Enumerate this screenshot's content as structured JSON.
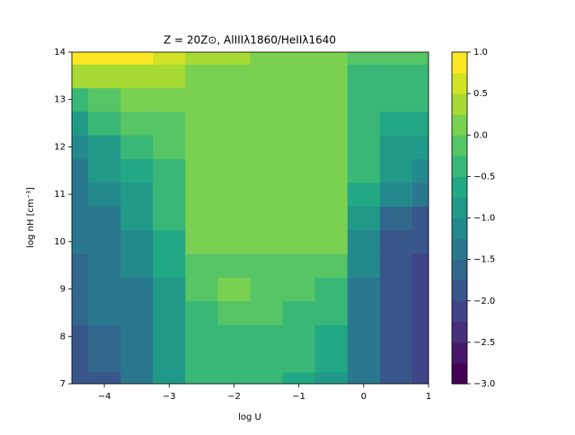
{
  "chart_data": {
    "type": "contour",
    "title": "Z = 20Z⊙, AlIIIλ1860/HeIIλ1640",
    "x_label": "log U",
    "y_label": "log nH [cm⁻³]",
    "colormap": "viridis",
    "x": [
      -4.5,
      -4,
      -3.5,
      -3,
      -2.5,
      -2,
      -1.5,
      -1,
      -0.5,
      0,
      0.5,
      1
    ],
    "y": [
      7,
      7.5,
      8,
      8.5,
      9,
      9.5,
      10,
      10.5,
      11,
      11.5,
      12,
      12.5,
      13,
      13.5,
      14
    ],
    "z": [
      [
        -2.0,
        -1.8,
        -1.5,
        -1.0,
        -0.5,
        -0.4,
        -0.45,
        -0.6,
        -0.8,
        -1.5,
        -2.0,
        -2.1
      ],
      [
        -1.9,
        -1.7,
        -1.4,
        -0.9,
        -0.4,
        -0.35,
        -0.4,
        -0.5,
        -0.7,
        -1.4,
        -2.0,
        -2.1
      ],
      [
        -1.8,
        -1.6,
        -1.3,
        -0.8,
        -0.3,
        -0.3,
        -0.3,
        -0.4,
        -0.6,
        -1.4,
        -2.0,
        -2.1
      ],
      [
        -1.7,
        -1.5,
        -1.3,
        -0.9,
        -0.3,
        -0.15,
        -0.2,
        -0.3,
        -0.5,
        -1.4,
        -2.0,
        -2.1
      ],
      [
        -1.6,
        -1.5,
        -1.3,
        -0.8,
        -0.2,
        0.05,
        -0.1,
        -0.15,
        -0.3,
        -1.3,
        -2.0,
        -2.1
      ],
      [
        -1.6,
        -1.4,
        -1.2,
        -0.7,
        -0.1,
        -0.1,
        -0.1,
        -0.1,
        -0.2,
        -1.2,
        -1.9,
        -2.1
      ],
      [
        -1.5,
        -1.4,
        -1.1,
        -0.6,
        0.05,
        0.1,
        0.1,
        0.1,
        0.05,
        -1.1,
        -1.8,
        -2.0
      ],
      [
        -1.5,
        -1.3,
        -1.0,
        -0.5,
        0.1,
        0.1,
        0.1,
        0.1,
        0.1,
        -0.9,
        -1.6,
        -1.8
      ],
      [
        -1.4,
        -1.2,
        -0.9,
        -0.4,
        0.1,
        0.1,
        0.1,
        0.1,
        0.1,
        -0.7,
        -1.2,
        -1.4
      ],
      [
        -1.3,
        -1.0,
        -0.7,
        -0.3,
        0.1,
        0.1,
        0.1,
        0.1,
        0.1,
        -0.5,
        -1.0,
        -1.1
      ],
      [
        -1.1,
        -0.8,
        -0.5,
        -0.2,
        0.1,
        0.1,
        0.1,
        0.1,
        0.1,
        -0.3,
        -0.8,
        -0.9
      ],
      [
        -0.8,
        -0.4,
        -0.2,
        -0.1,
        0.05,
        0.1,
        0.15,
        0.1,
        0.1,
        -0.5,
        -0.6,
        -0.6
      ],
      [
        -0.3,
        -0.1,
        0.0,
        0.05,
        0.0,
        0.1,
        0.1,
        0.1,
        0.1,
        -0.4,
        -0.4,
        -0.4
      ],
      [
        0.3,
        0.4,
        0.4,
        0.3,
        0.2,
        0.1,
        0.1,
        0.1,
        0.1,
        -0.3,
        -0.3,
        -0.3
      ],
      [
        0.8,
        0.8,
        0.8,
        0.6,
        0.4,
        0.3,
        0.1,
        0.1,
        0.1,
        -0.2,
        -0.2,
        -0.2
      ]
    ],
    "levels": [
      -3,
      -2.75,
      -2.5,
      -2.25,
      -2,
      -1.75,
      -1.5,
      -1.25,
      -1,
      -0.75,
      -0.5,
      -0.25,
      0,
      0.25,
      0.5,
      0.75,
      1
    ],
    "xlim": [
      -4.5,
      1
    ],
    "ylim": [
      7,
      14
    ],
    "xticks": [
      {
        "value": -4,
        "label": "−4"
      },
      {
        "value": -3,
        "label": "−3"
      },
      {
        "value": -2,
        "label": "−2"
      },
      {
        "value": -1,
        "label": "−1"
      },
      0,
      1
    ],
    "yticks": [
      7,
      8,
      9,
      10,
      11,
      12,
      13,
      14
    ],
    "clim": [
      -3,
      1
    ],
    "cticks": [
      {
        "value": -3,
        "label": "−3.0"
      },
      {
        "value": -2.5,
        "label": "−2.5"
      },
      {
        "value": -2,
        "label": "−2.0"
      },
      {
        "value": -1.5,
        "label": "−1.5"
      },
      {
        "value": -1,
        "label": "−1.0"
      },
      {
        "value": -0.5,
        "label": "−0.5"
      },
      {
        "value": 0,
        "label": "0.0"
      },
      {
        "value": 0.5,
        "label": "0.5"
      },
      {
        "value": 1,
        "label": "1.0"
      }
    ]
  }
}
